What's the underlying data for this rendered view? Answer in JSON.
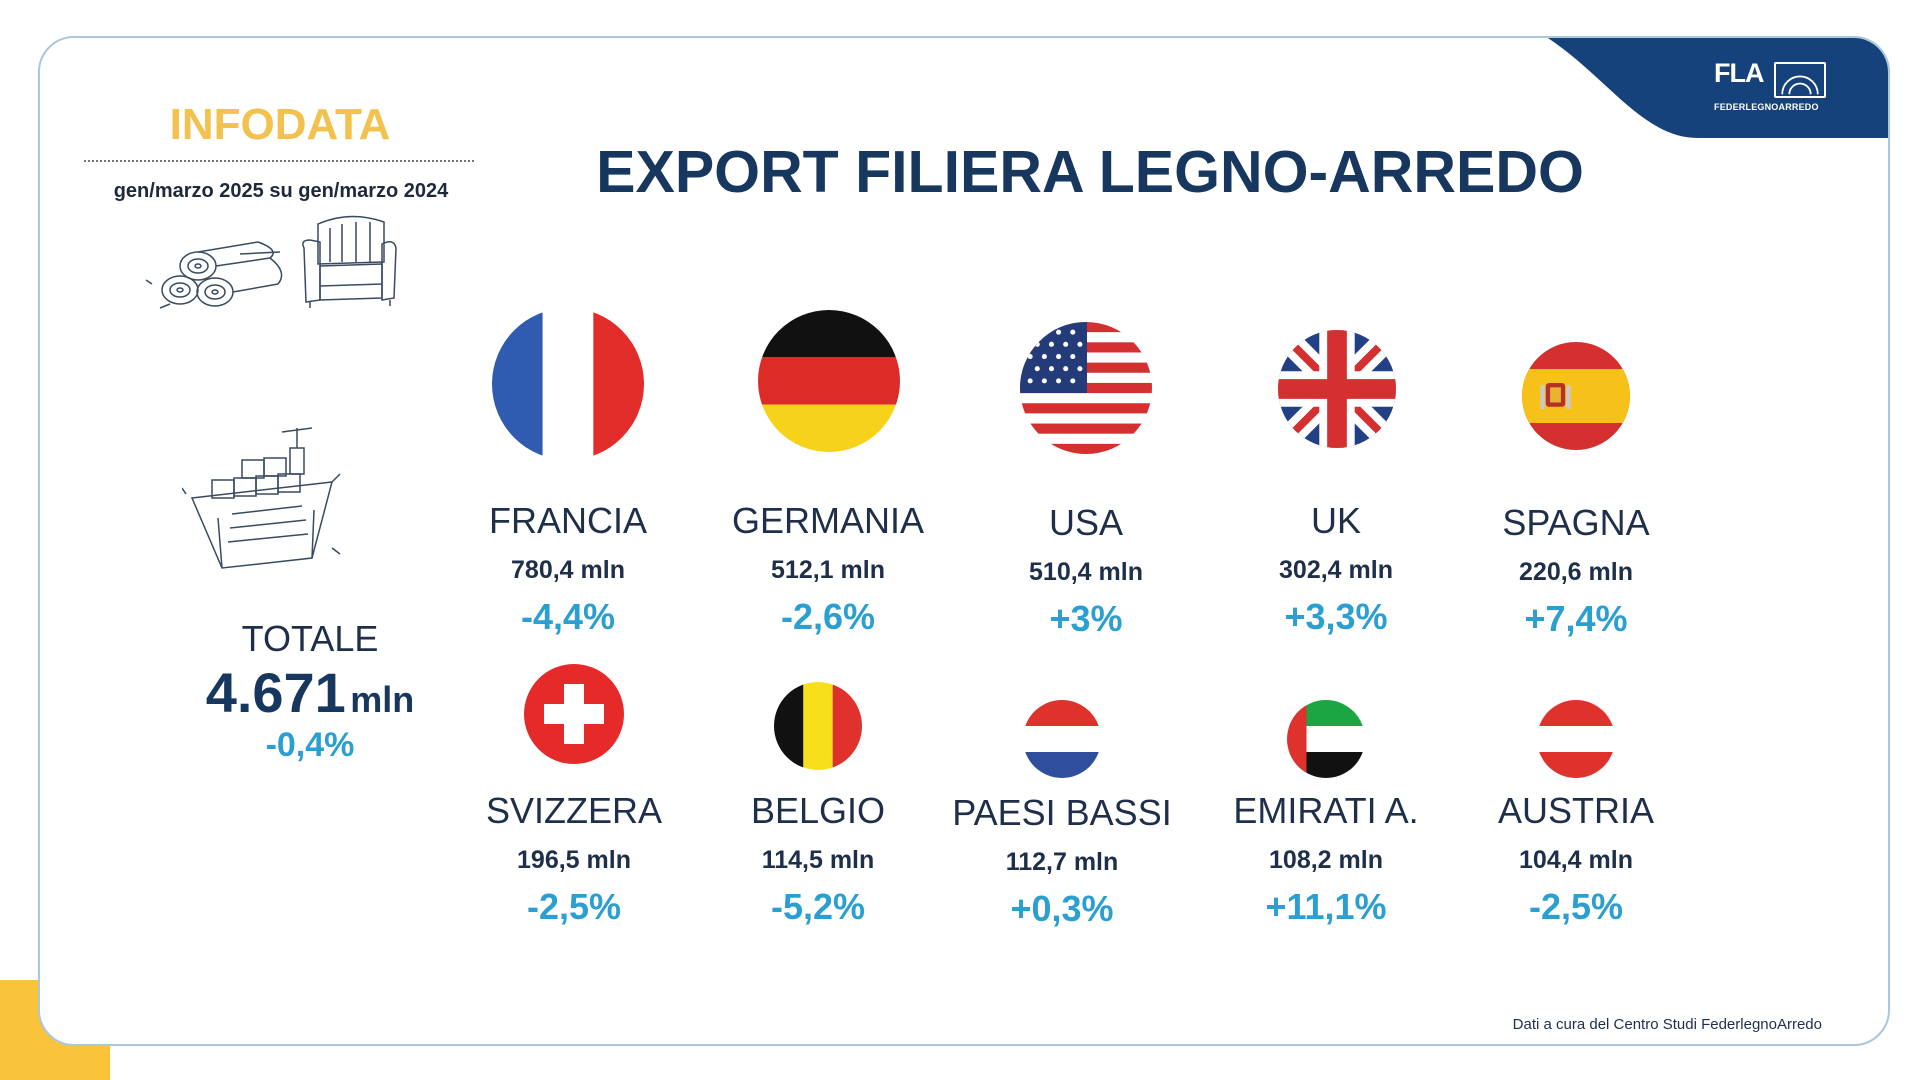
{
  "header": {
    "brand_label": "INFODATA",
    "period": "gen/marzo 2025 su gen/marzo 2024",
    "title": "EXPORT FILIERA LEGNO-ARREDO"
  },
  "logo": {
    "text": "FLA",
    "subtext": "FEDERLEGNOARREDO"
  },
  "total": {
    "label": "TOTALE",
    "value": "4.671",
    "unit": "mln",
    "change": "-0,4%"
  },
  "countries": [
    {
      "name": "FRANCIA",
      "value": "780,4 mln",
      "change": "-4,4%",
      "flag": "france-flag-icon"
    },
    {
      "name": "GERMANIA",
      "value": "512,1 mln",
      "change": "-2,6%",
      "flag": "germany-flag-icon"
    },
    {
      "name": "USA",
      "value": "510,4 mln",
      "change": "+3%",
      "flag": "usa-flag-icon"
    },
    {
      "name": "UK",
      "value": "302,4 mln",
      "change": "+3,3%",
      "flag": "uk-flag-icon"
    },
    {
      "name": "SPAGNA",
      "value": "220,6 mln",
      "change": "+7,4%",
      "flag": "spain-flag-icon"
    },
    {
      "name": "SVIZZERA",
      "value": "196,5 mln",
      "change": "-2,5%",
      "flag": "switzerland-flag-icon"
    },
    {
      "name": "BELGIO",
      "value": "114,5 mln",
      "change": "-5,2%",
      "flag": "belgium-flag-icon"
    },
    {
      "name": "PAESI BASSI",
      "value": "112,7 mln",
      "change": "+0,3%",
      "flag": "netherlands-flag-icon"
    },
    {
      "name": "EMIRATI A.",
      "value": "108,2 mln",
      "change": "+11,1%",
      "flag": "uae-flag-icon"
    },
    {
      "name": "AUSTRIA",
      "value": "104,4 mln",
      "change": "-2,5%",
      "flag": "austria-flag-icon"
    }
  ],
  "footer": {
    "source": "Dati a cura del Centro Studi FederlegnoArredo"
  },
  "colors": {
    "title_navy": "#17375e",
    "accent_yellow": "#f9c33a",
    "change_blue": "#2b9fd0"
  }
}
